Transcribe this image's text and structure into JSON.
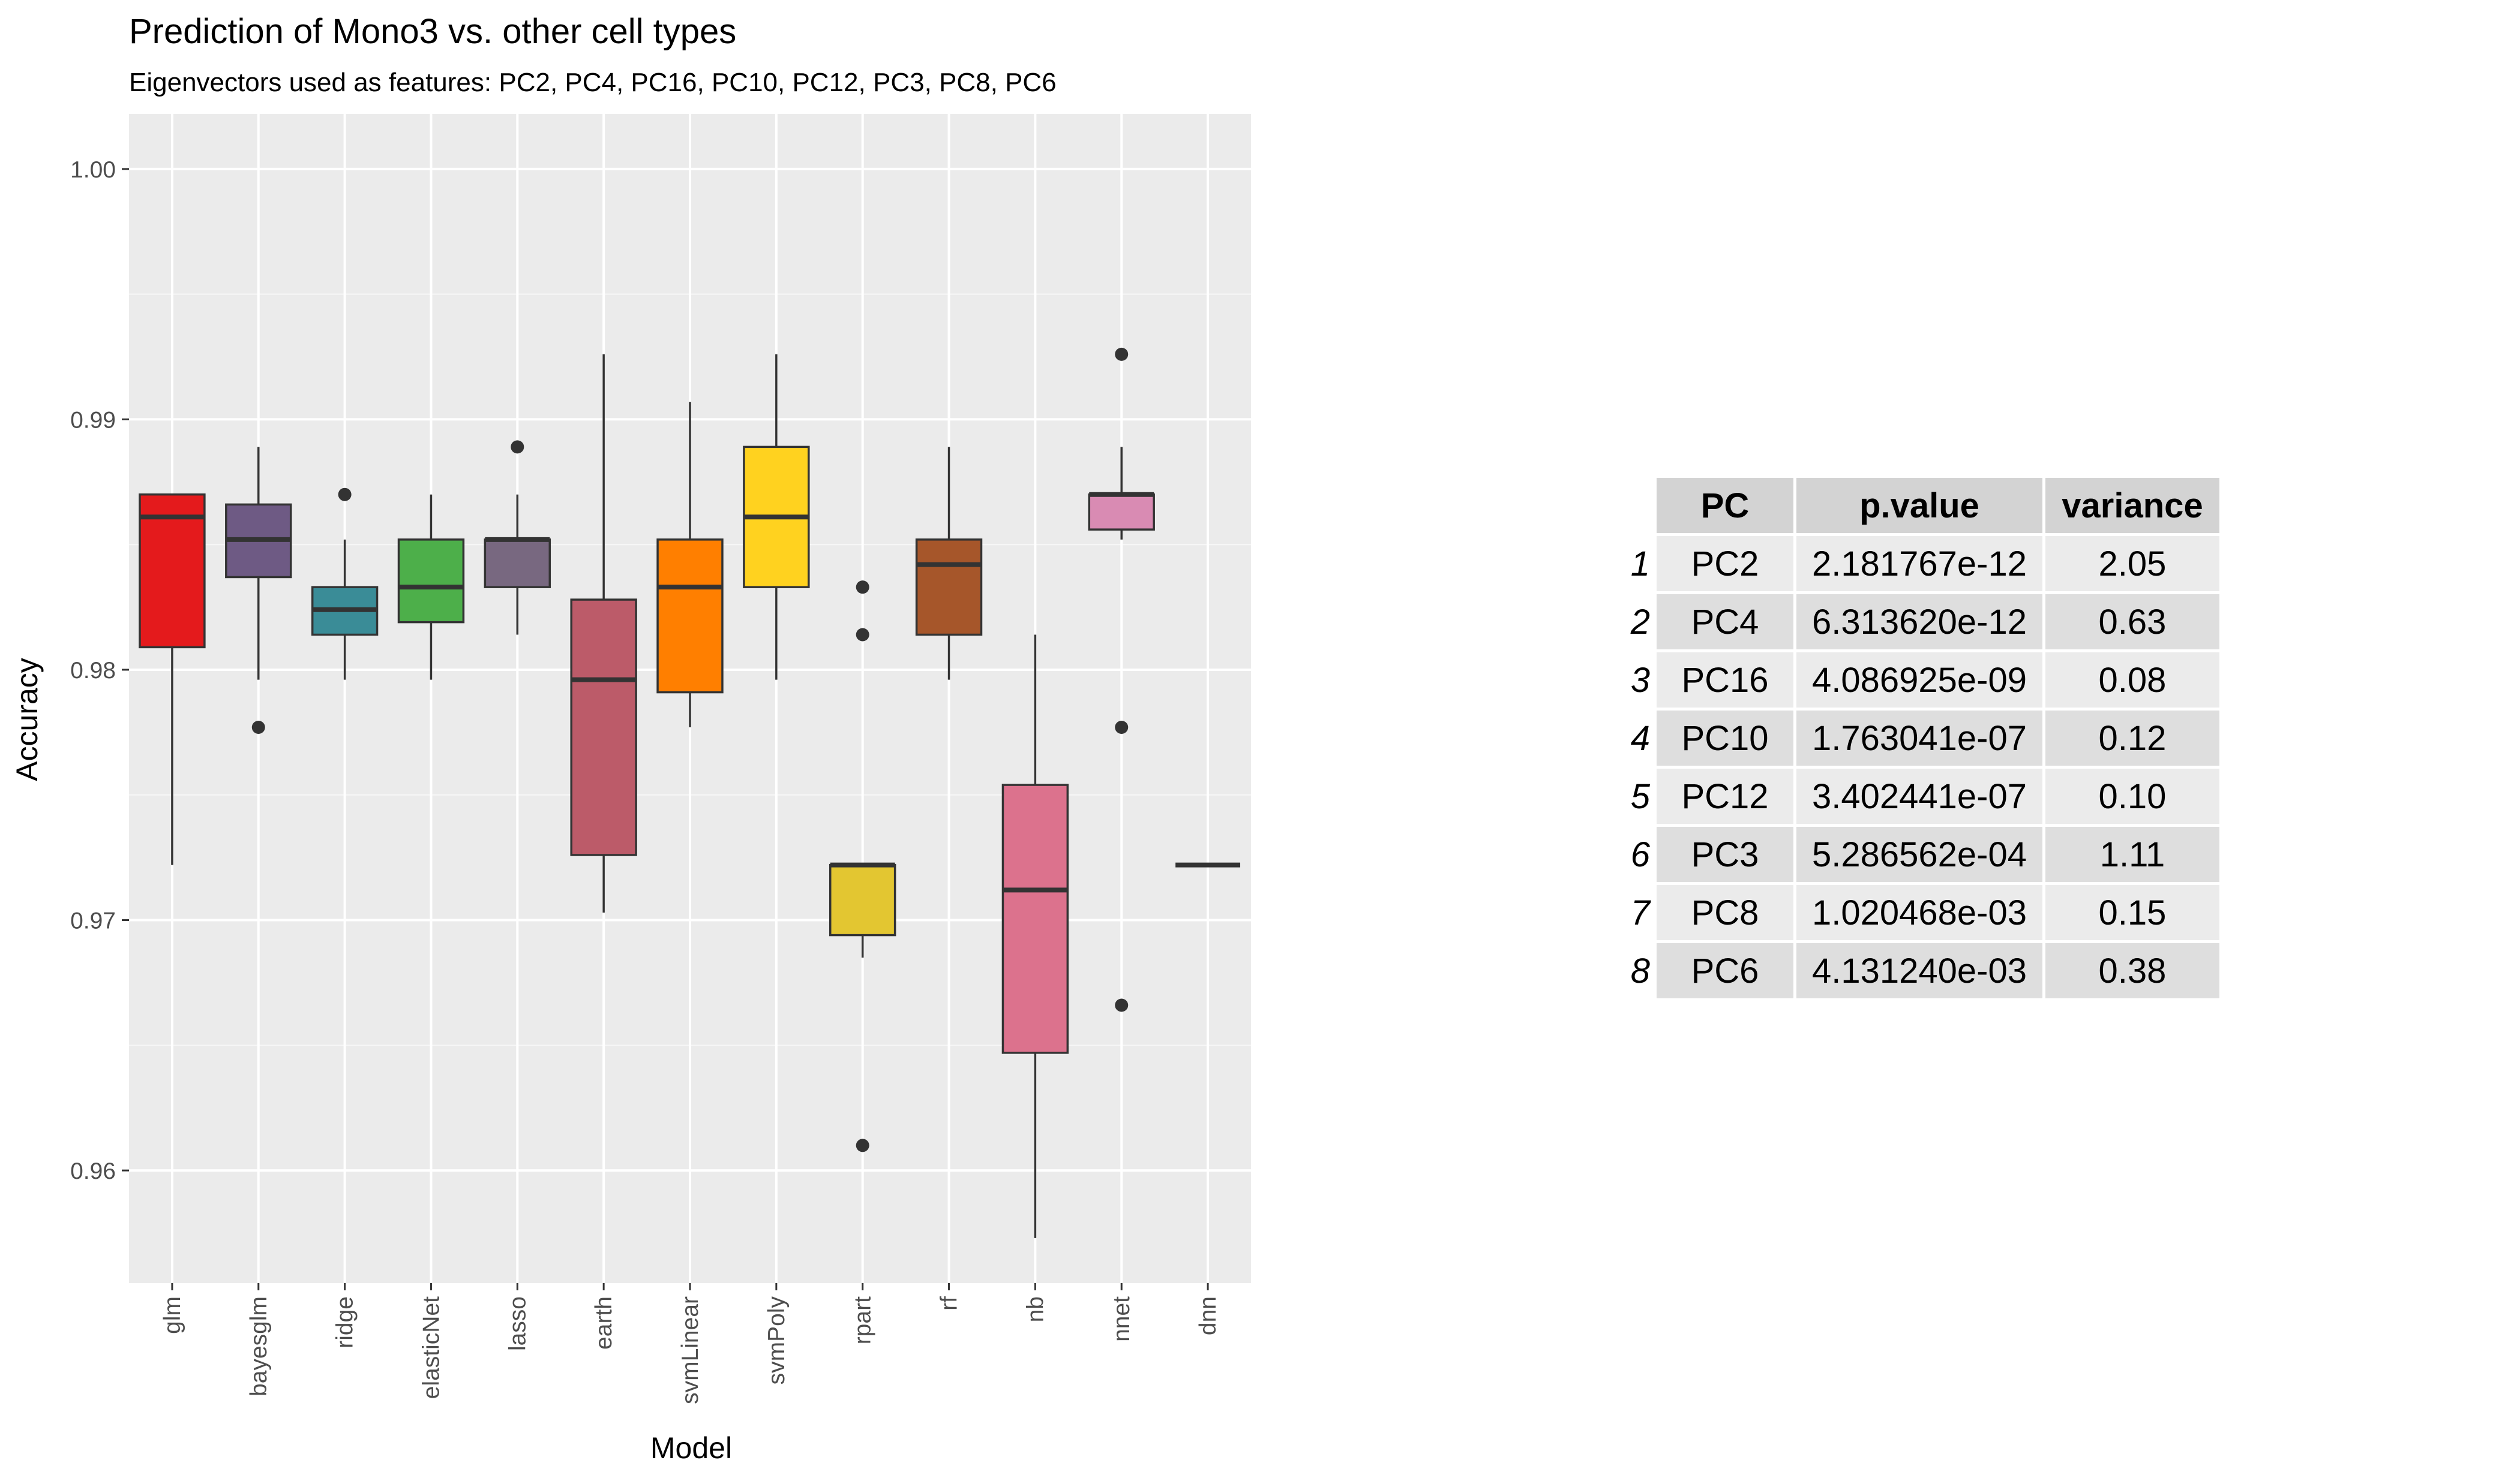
{
  "chart_data": {
    "type": "box",
    "title": "Prediction of Mono3 vs. other cell types",
    "subtitle": "Eigenvectors used as features: PC2, PC4, PC16, PC10, PC12, PC3, PC8, PC6",
    "xlabel": "Model",
    "ylabel": "Accuracy",
    "ylim": [
      0.9555,
      1.0022
    ],
    "yticks": [
      "0.96",
      "0.97",
      "0.98",
      "0.99",
      "1.00"
    ],
    "ytick_values": [
      0.96,
      0.97,
      0.98,
      0.99,
      1.0
    ],
    "grid": true,
    "categories": [
      "glm",
      "bayesglm",
      "ridge",
      "elasticNet",
      "lasso",
      "earth",
      "svmLinear",
      "svmPoly",
      "rpart",
      "rf",
      "nb",
      "nnet",
      "dnn"
    ],
    "boxes": [
      {
        "model": "glm",
        "color": "#e41a1c",
        "lower_whisker": 0.9722,
        "q1": 0.9809,
        "median": 0.9861,
        "q3": 0.987,
        "upper_whisker": 0.987,
        "outliers": []
      },
      {
        "model": "bayesglm",
        "color": "#6e5a84",
        "lower_whisker": 0.9796,
        "q1": 0.9837,
        "median": 0.9852,
        "q3": 0.9866,
        "upper_whisker": 0.9889,
        "outliers": [
          0.9777
        ]
      },
      {
        "model": "ridge",
        "color": "#3a8c97",
        "lower_whisker": 0.9796,
        "q1": 0.9814,
        "median": 0.9824,
        "q3": 0.9833,
        "upper_whisker": 0.9852,
        "outliers": [
          0.987
        ]
      },
      {
        "model": "elasticNet",
        "color": "#4daf4a",
        "lower_whisker": 0.9796,
        "q1": 0.9819,
        "median": 0.9833,
        "q3": 0.9852,
        "upper_whisker": 0.987,
        "outliers": []
      },
      {
        "model": "lasso",
        "color": "#786880",
        "lower_whisker": 0.9814,
        "q1": 0.9833,
        "median": 0.9852,
        "q3": 0.9852,
        "upper_whisker": 0.987,
        "outliers": [
          0.9889
        ]
      },
      {
        "model": "earth",
        "color": "#bc5b69",
        "lower_whisker": 0.9703,
        "q1": 0.9726,
        "median": 0.9796,
        "q3": 0.9828,
        "upper_whisker": 0.9926,
        "outliers": []
      },
      {
        "model": "svmLinear",
        "color": "#ff7f00",
        "lower_whisker": 0.9777,
        "q1": 0.9791,
        "median": 0.9833,
        "q3": 0.9852,
        "upper_whisker": 0.9907,
        "outliers": []
      },
      {
        "model": "svmPoly",
        "color": "#ffd21f",
        "lower_whisker": 0.9796,
        "q1": 0.9833,
        "median": 0.9861,
        "q3": 0.9889,
        "upper_whisker": 0.9926,
        "outliers": []
      },
      {
        "model": "rpart",
        "color": "#e3c631",
        "lower_whisker": 0.9685,
        "q1": 0.9694,
        "median": 0.9722,
        "q3": 0.9722,
        "upper_whisker": 0.9722,
        "outliers": [
          0.9833,
          0.9814,
          0.961
        ]
      },
      {
        "model": "rf",
        "color": "#a6562a",
        "lower_whisker": 0.9796,
        "q1": 0.9814,
        "median": 0.9842,
        "q3": 0.9852,
        "upper_whisker": 0.9889,
        "outliers": []
      },
      {
        "model": "nb",
        "color": "#dc728d",
        "lower_whisker": 0.9573,
        "q1": 0.9647,
        "median": 0.9712,
        "q3": 0.9754,
        "upper_whisker": 0.9814,
        "outliers": []
      },
      {
        "model": "nnet",
        "color": "#d98bb3",
        "lower_whisker": 0.9852,
        "q1": 0.9856,
        "median": 0.987,
        "q3": 0.987,
        "upper_whisker": 0.9889,
        "outliers": [
          0.9926,
          0.9777,
          0.9666
        ]
      },
      {
        "model": "dnn",
        "color": "#b1b1b1",
        "lower_whisker": 0.9722,
        "q1": 0.9722,
        "median": 0.9722,
        "q3": 0.9722,
        "upper_whisker": 0.9722,
        "outliers": []
      }
    ]
  },
  "table": {
    "headers": [
      "PC",
      "p.value",
      "variance"
    ],
    "rows": [
      {
        "n": "1",
        "pc": "PC2",
        "pval": "2.181767e-12",
        "var": "2.05"
      },
      {
        "n": "2",
        "pc": "PC4",
        "pval": "6.313620e-12",
        "var": "0.63"
      },
      {
        "n": "3",
        "pc": "PC16",
        "pval": "4.086925e-09",
        "var": "0.08"
      },
      {
        "n": "4",
        "pc": "PC10",
        "pval": "1.763041e-07",
        "var": "0.12"
      },
      {
        "n": "5",
        "pc": "PC12",
        "pval": "3.402441e-07",
        "var": "0.10"
      },
      {
        "n": "6",
        "pc": "PC3",
        "pval": "5.286562e-04",
        "var": "1.11"
      },
      {
        "n": "7",
        "pc": "PC8",
        "pval": "1.020468e-03",
        "var": "0.15"
      },
      {
        "n": "8",
        "pc": "PC6",
        "pval": "4.131240e-03",
        "var": "0.38"
      }
    ]
  }
}
